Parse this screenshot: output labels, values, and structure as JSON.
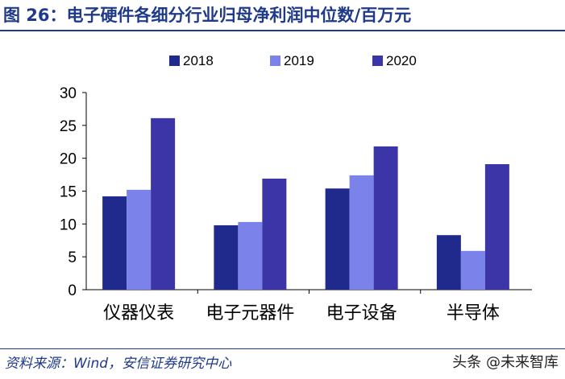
{
  "figure": {
    "title": "图 26：电子硬件各细分行业归母净利润中位数/百万元",
    "source": "资料来源：Wind，安信证券研究中心",
    "watermark": "头条 @未来智库"
  },
  "chart_data": {
    "type": "bar",
    "title": "",
    "xlabel": "",
    "ylabel": "",
    "ylim": [
      0,
      30
    ],
    "yticks": [
      0,
      5,
      10,
      15,
      20,
      25,
      30
    ],
    "legend_position": "top",
    "grid": false,
    "categories": [
      "仪器仪表",
      "电子元器件",
      "电子设备",
      "半导体"
    ],
    "series": [
      {
        "name": "2018",
        "color": "#1f2a8c",
        "values": [
          14.2,
          9.8,
          15.4,
          8.3
        ]
      },
      {
        "name": "2019",
        "color": "#7b83ea",
        "values": [
          15.2,
          10.3,
          17.4,
          5.9
        ]
      },
      {
        "name": "2020",
        "color": "#3b35a8",
        "values": [
          26.1,
          16.9,
          21.8,
          19.1
        ]
      }
    ]
  }
}
